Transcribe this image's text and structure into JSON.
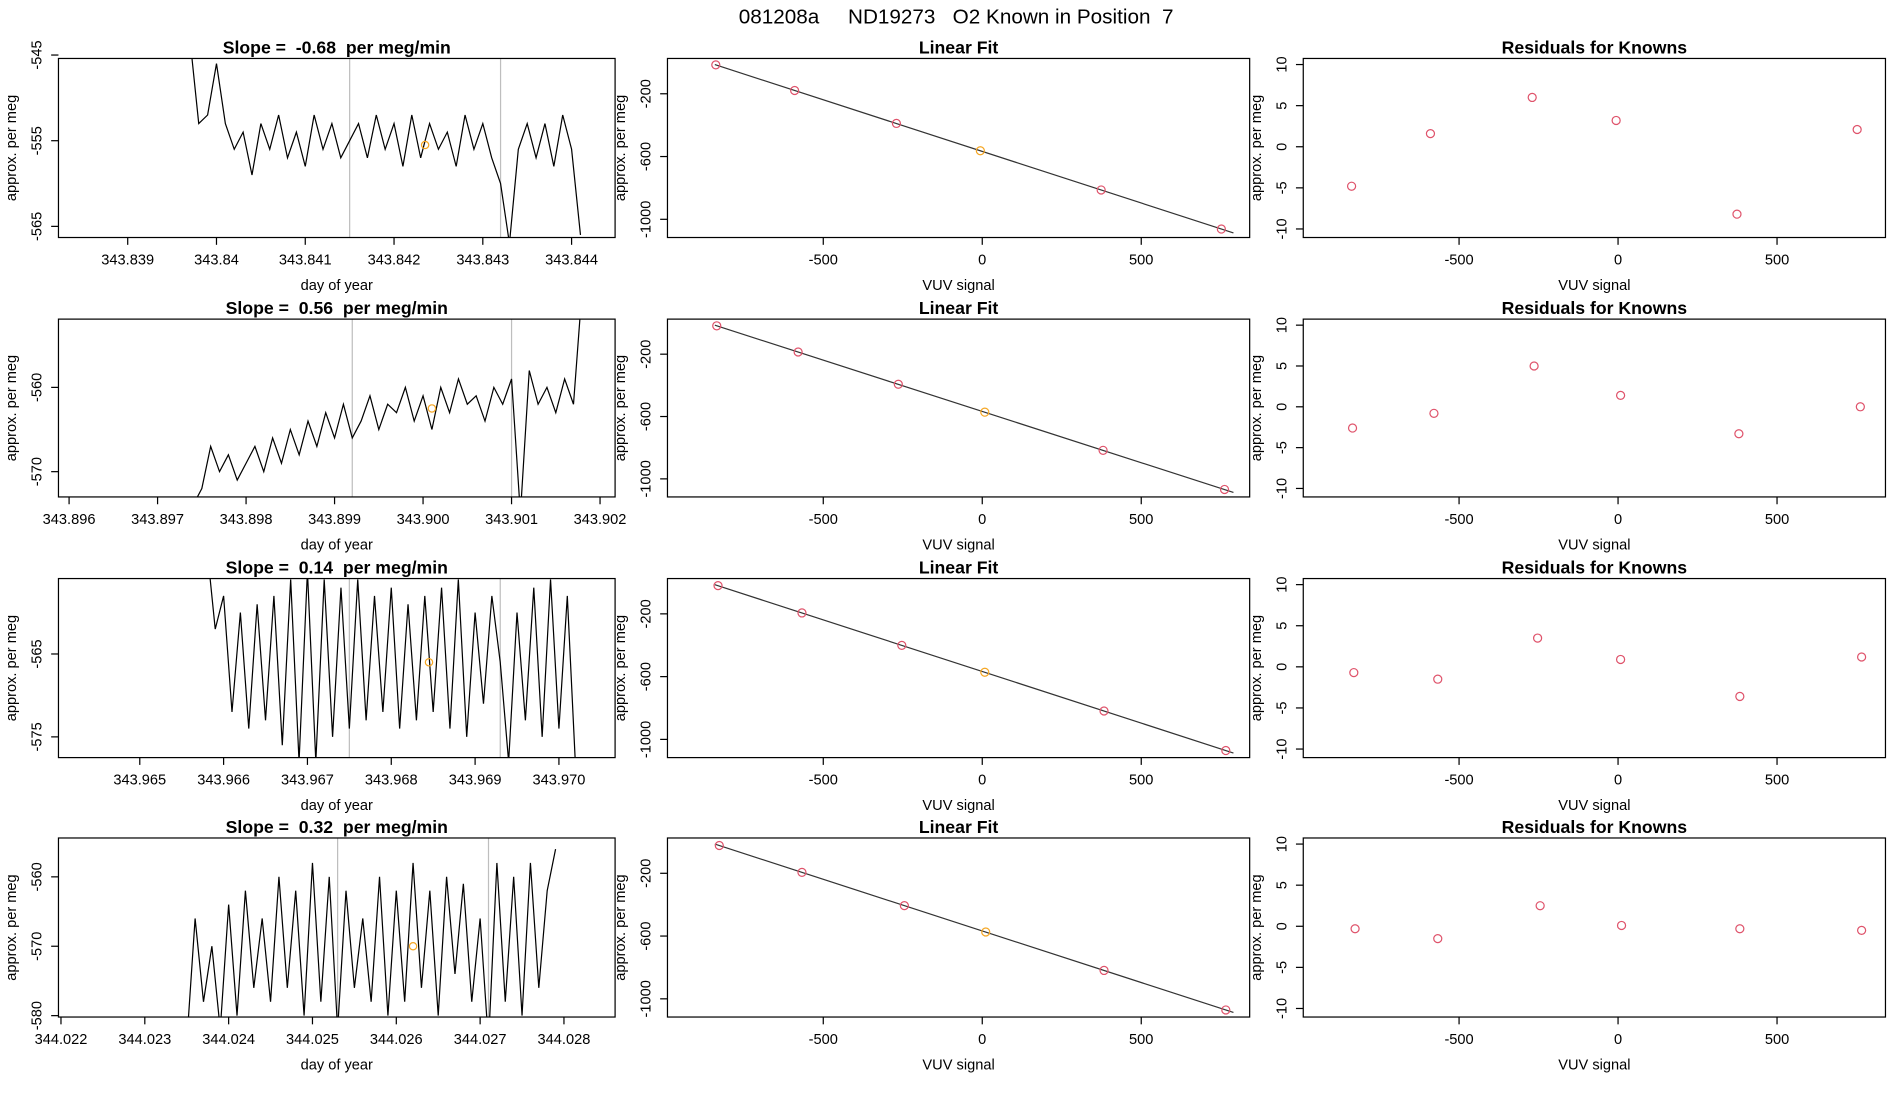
{
  "title": "081208a     ND19273   O2 Known in Position  7",
  "chart_data": [
    {
      "type": "line",
      "title": "Slope =  -0.68  per meg/min",
      "xlabel": "day of year",
      "ylabel": "approx. per meg",
      "xlim": [
        343.83822,
        343.84449
      ],
      "ylim": [
        -566.3,
        -545.4
      ],
      "xticks": [
        343.839,
        343.84,
        343.841,
        343.842,
        343.843,
        343.844
      ],
      "yticks": [
        -545,
        -555,
        -565
      ],
      "color": "#000000",
      "x": [
        343.8397,
        343.8398,
        343.8399,
        343.84,
        343.8401,
        343.8402,
        343.8403,
        343.8404,
        343.8405,
        343.8406,
        343.8407,
        343.8408,
        343.8409,
        343.841,
        343.8411,
        343.8412,
        343.8413,
        343.8414,
        343.8415,
        343.8416,
        343.8417,
        343.8418,
        343.8419,
        343.842,
        343.8421,
        343.8422,
        343.8423,
        343.8424,
        343.8425,
        343.8426,
        343.8427,
        343.8428,
        343.8429,
        343.843,
        343.8431,
        343.8432,
        343.8433,
        343.8434,
        343.8435,
        343.8436,
        343.8437,
        343.8438,
        343.8439,
        343.844,
        343.8441
      ],
      "values": [
        -543,
        -553,
        -552,
        -546,
        -553,
        -556,
        -554,
        -559,
        -553,
        -556,
        -552,
        -557,
        -554,
        -558,
        -552,
        -556,
        -553,
        -557,
        -555,
        -553,
        -557,
        -552,
        -556,
        -553,
        -558,
        -552,
        -557,
        -553,
        -556,
        -554,
        -558,
        -552,
        -556,
        -553,
        -557,
        -560,
        -567,
        -556,
        -553,
        -557,
        -553,
        -558,
        -552,
        -556,
        -566
      ],
      "highlight": {
        "x": 343.84235,
        "y": -555.5,
        "color": "#f5a623"
      },
      "vlines": [
        343.8415,
        343.8432
      ],
      "vline_color": "#bebebe"
    },
    {
      "type": "scatter",
      "title": "Linear Fit",
      "xlabel": "VUV signal",
      "ylabel": "approx. per meg",
      "xlim": [
        -990,
        841
      ],
      "ylim": [
        -1116,
        25
      ],
      "xticks": [
        -500,
        0,
        500
      ],
      "yticks": [
        -200,
        -600,
        -1000
      ],
      "x": [
        -838,
        -590,
        -270,
        -6,
        374,
        752
      ],
      "values": [
        -16,
        -179,
        -389,
        -563,
        -813,
        -1062
      ],
      "point_colors": [
        "#df536b",
        "#df536b",
        "#df536b",
        "#f5a623",
        "#df536b",
        "#df536b"
      ],
      "fit_line": {
        "x": [
          -841,
          790
        ],
        "y": [
          -14,
          -1087
        ],
        "color": "#333333"
      }
    },
    {
      "type": "scatter",
      "title": "Residuals for Knowns",
      "xlabel": "VUV signal",
      "ylabel": "approx. per meg",
      "xlim": [
        -990,
        841
      ],
      "ylim": [
        -11.04,
        10.74
      ],
      "xticks": [
        -500,
        0,
        500
      ],
      "yticks": [
        -10,
        -5,
        0,
        5,
        10
      ],
      "x": [
        -838,
        -590,
        -270,
        -6,
        374,
        752
      ],
      "values": [
        -4.8,
        1.6,
        6.0,
        3.2,
        -8.2,
        2.1
      ],
      "point_colors": [
        "#df536b",
        "#df536b",
        "#df536b",
        "#df536b",
        "#df536b",
        "#df536b"
      ]
    },
    {
      "type": "line",
      "title": "Slope =  0.56  per meg/min",
      "xlabel": "day of year",
      "ylabel": "approx. per meg",
      "xlim": [
        343.89588,
        343.90217
      ],
      "ylim": [
        -573,
        -551.9
      ],
      "xticks": [
        343.896,
        343.897,
        343.898,
        343.899,
        {
          "value": 343.9,
          "label": "343.900"
        },
        343.901,
        343.902
      ],
      "yticks": [
        -560,
        -570
      ],
      "color": "#000000",
      "x": [
        343.8974,
        343.8975,
        343.8976,
        343.8977,
        343.8978,
        343.8979,
        343.898,
        343.8981,
        343.8982,
        343.8983,
        343.8984,
        343.8985,
        343.8986,
        343.8987,
        343.8988,
        343.8989,
        343.899,
        343.8991,
        343.8992,
        343.8993,
        343.8994,
        343.8995,
        343.8996,
        343.8997,
        343.8998,
        343.8999,
        343.9,
        343.9001,
        343.9002,
        343.9003,
        343.9004,
        343.9005,
        343.9006,
        343.9007,
        343.9008,
        343.9009,
        343.901,
        343.9011,
        343.9012,
        343.9013,
        343.9014,
        343.9015,
        343.9016,
        343.9017,
        343.9018
      ],
      "values": [
        -574,
        -572,
        -567,
        -570,
        -568,
        -571,
        -569,
        -567,
        -570,
        -566,
        -569,
        -565,
        -568,
        -564,
        -567,
        -563,
        -566,
        -562,
        -566,
        -564,
        -561,
        -565,
        -562,
        -563,
        -560,
        -564,
        -561,
        -565,
        -560,
        -563,
        -559,
        -562,
        -561,
        -564,
        -560,
        -562,
        -559,
        -575,
        -558,
        -562,
        -560,
        -563,
        -559,
        -562,
        -548
      ],
      "highlight": {
        "x": 343.9001,
        "y": -562.5,
        "color": "#f5a623"
      },
      "vlines": [
        343.8992,
        343.901
      ],
      "vline_color": "#bebebe"
    },
    {
      "type": "scatter",
      "title": "Linear Fit",
      "xlabel": "VUV signal",
      "ylabel": "approx. per meg",
      "xlim": [
        -990,
        841
      ],
      "ylim": [
        -1116,
        25
      ],
      "xticks": [
        -500,
        0,
        500
      ],
      "yticks": [
        -200,
        -600,
        -1000
      ],
      "x": [
        -835,
        -579,
        -264,
        8,
        380,
        762
      ],
      "values": [
        -18,
        -186,
        -393,
        -572,
        -817,
        -1068
      ],
      "point_colors": [
        "#df536b",
        "#df536b",
        "#df536b",
        "#f5a623",
        "#df536b",
        "#df536b"
      ],
      "fit_line": {
        "x": [
          -841,
          790
        ],
        "y": [
          -14,
          -1087
        ],
        "color": "#333333"
      }
    },
    {
      "type": "scatter",
      "title": "Residuals for Knowns",
      "xlabel": "VUV signal",
      "ylabel": "approx. per meg",
      "xlim": [
        -990,
        841
      ],
      "ylim": [
        -11.04,
        10.74
      ],
      "xticks": [
        -500,
        0,
        500
      ],
      "yticks": [
        -10,
        -5,
        0,
        5,
        10
      ],
      "x": [
        -835,
        -579,
        -264,
        8,
        380,
        762
      ],
      "values": [
        -2.6,
        -0.8,
        5.0,
        1.4,
        -3.3,
        0.0
      ],
      "point_colors": [
        "#df536b",
        "#df536b",
        "#df536b",
        "#df536b",
        "#df536b",
        "#df536b"
      ]
    },
    {
      "type": "line",
      "title": "Slope =  0.14  per meg/min",
      "xlabel": "day of year",
      "ylabel": "approx. per meg",
      "xlim": [
        343.96403,
        343.97067
      ],
      "ylim": [
        -577.5,
        -555.9
      ],
      "xticks": [
        343.965,
        343.966,
        343.967,
        343.968,
        343.969,
        {
          "value": 343.97,
          "label": "343.970"
        }
      ],
      "yticks": [
        -565,
        -575
      ],
      "color": "#000000",
      "x": [
        343.9658,
        343.9659,
        343.966,
        343.9661,
        343.9662,
        343.9663,
        343.9664,
        343.9665,
        343.9666,
        343.9667,
        343.9668,
        343.9669,
        343.967,
        343.9671,
        343.9672,
        343.9673,
        343.9674,
        343.9675,
        343.9676,
        343.9677,
        343.9678,
        343.9679,
        343.968,
        343.9681,
        343.9682,
        343.9683,
        343.9684,
        343.9685,
        343.9686,
        343.9687,
        343.9688,
        343.9689,
        343.969,
        343.9691,
        343.9692,
        343.9693,
        343.9694,
        343.9695,
        343.9696,
        343.9697,
        343.9698,
        343.9699,
        343.97,
        343.9701,
        343.9702
      ],
      "values": [
        -552,
        -562,
        -558,
        -572,
        -560,
        -574,
        -559,
        -573,
        -558,
        -576,
        -556,
        -578,
        -555,
        -578,
        -556,
        -575,
        -557,
        -574,
        -556,
        -573,
        -558,
        -572,
        -557,
        -574,
        -559,
        -573,
        -558,
        -572,
        -557,
        -574,
        -556,
        -575,
        -560,
        -571,
        -558,
        -566,
        -578,
        -560,
        -573,
        -557,
        -575,
        -556,
        -574,
        -558,
        -579
      ],
      "highlight": {
        "x": 343.96845,
        "y": -566,
        "color": "#f5a623"
      },
      "vlines": [
        343.9675,
        343.9693
      ],
      "vline_color": "#bebebe"
    },
    {
      "type": "scatter",
      "title": "Linear Fit",
      "xlabel": "VUV signal",
      "ylabel": "approx. per meg",
      "xlim": [
        -990,
        841
      ],
      "ylim": [
        -1116,
        25
      ],
      "xticks": [
        -500,
        0,
        500
      ],
      "yticks": [
        -200,
        -600,
        -1000
      ],
      "x": [
        -831,
        -567,
        -253,
        8,
        383,
        766
      ],
      "values": [
        -20,
        -194,
        -401,
        -572,
        -819,
        -1071
      ],
      "point_colors": [
        "#df536b",
        "#df536b",
        "#df536b",
        "#f5a623",
        "#df536b",
        "#df536b"
      ],
      "fit_line": {
        "x": [
          -841,
          790
        ],
        "y": [
          -14,
          -1087
        ],
        "color": "#333333"
      }
    },
    {
      "type": "scatter",
      "title": "Residuals for Knowns",
      "xlabel": "VUV signal",
      "ylabel": "approx. per meg",
      "xlim": [
        -990,
        841
      ],
      "ylim": [
        -11.04,
        10.74
      ],
      "xticks": [
        -500,
        0,
        500
      ],
      "yticks": [
        -10,
        -5,
        0,
        5,
        10
      ],
      "x": [
        -831,
        -567,
        -253,
        8,
        383,
        766
      ],
      "values": [
        -0.7,
        -1.5,
        3.5,
        0.9,
        -3.6,
        1.2
      ],
      "point_colors": [
        "#df536b",
        "#df536b",
        "#df536b",
        "#df536b",
        "#df536b",
        "#df536b"
      ]
    },
    {
      "type": "line",
      "title": "Slope =  0.32  per meg/min",
      "xlabel": "day of year",
      "ylabel": "approx. per meg",
      "xlim": [
        344.02197,
        344.02861
      ],
      "ylim": [
        -580.2,
        -554.4
      ],
      "xticks": [
        344.022,
        344.023,
        344.024,
        344.025,
        344.026,
        344.027,
        344.028
      ],
      "yticks": [
        -560,
        -570,
        -580
      ],
      "color": "#000000",
      "x": [
        344.0235,
        344.0236,
        344.0237,
        344.0238,
        344.0239,
        344.024,
        344.0241,
        344.0242,
        344.0243,
        344.0244,
        344.0245,
        344.0246,
        344.0247,
        344.0248,
        344.0249,
        344.025,
        344.0251,
        344.0252,
        344.0253,
        344.0254,
        344.0255,
        344.0256,
        344.0257,
        344.0258,
        344.0259,
        344.026,
        344.0261,
        344.0262,
        344.0263,
        344.0264,
        344.0265,
        344.0266,
        344.0267,
        344.0268,
        344.0269,
        344.027,
        344.0271,
        344.0272,
        344.0273,
        344.0274,
        344.0275,
        344.0276,
        344.0277,
        344.0278,
        344.0279
      ],
      "values": [
        -584,
        -566,
        -578,
        -570,
        -582,
        -564,
        -580,
        -562,
        -576,
        -566,
        -578,
        -560,
        -576,
        -562,
        -580,
        -558,
        -578,
        -560,
        -582,
        -562,
        -576,
        -566,
        -578,
        -560,
        -580,
        -562,
        -578,
        -558,
        -576,
        -562,
        -580,
        -560,
        -574,
        -561,
        -578,
        -566,
        -584,
        -558,
        -578,
        -560,
        -580,
        -558,
        -576,
        -562,
        -556
      ],
      "highlight": {
        "x": 344.0262,
        "y": -570,
        "color": "#f5a623"
      },
      "vlines": [
        344.0253,
        344.0271
      ],
      "vline_color": "#bebebe"
    },
    {
      "type": "scatter",
      "title": "Linear Fit",
      "xlabel": "VUV signal",
      "ylabel": "approx. per meg",
      "xlim": [
        -990,
        841
      ],
      "ylim": [
        -1116,
        25
      ],
      "xticks": [
        -500,
        0,
        500
      ],
      "yticks": [
        -200,
        -600,
        -1000
      ],
      "x": [
        -827,
        -567,
        -245,
        11,
        383,
        766
      ],
      "values": [
        -23,
        -194,
        -406,
        -574,
        -819,
        -1071
      ],
      "point_colors": [
        "#df536b",
        "#df536b",
        "#df536b",
        "#f5a623",
        "#df536b",
        "#df536b"
      ],
      "fit_line": {
        "x": [
          -841,
          790
        ],
        "y": [
          -14,
          -1087
        ],
        "color": "#333333"
      }
    },
    {
      "type": "scatter",
      "title": "Residuals for Knowns",
      "xlabel": "VUV signal",
      "ylabel": "approx. per meg",
      "xlim": [
        -990,
        841
      ],
      "ylim": [
        -11.04,
        10.74
      ],
      "xticks": [
        -500,
        0,
        500
      ],
      "yticks": [
        -10,
        -5,
        0,
        5,
        10
      ],
      "x": [
        -827,
        -567,
        -245,
        11,
        383,
        766
      ],
      "values": [
        -0.3,
        -1.5,
        2.5,
        0.1,
        -0.3,
        -0.5
      ],
      "point_colors": [
        "#df536b",
        "#df536b",
        "#df536b",
        "#df536b",
        "#df536b",
        "#df536b"
      ]
    }
  ]
}
